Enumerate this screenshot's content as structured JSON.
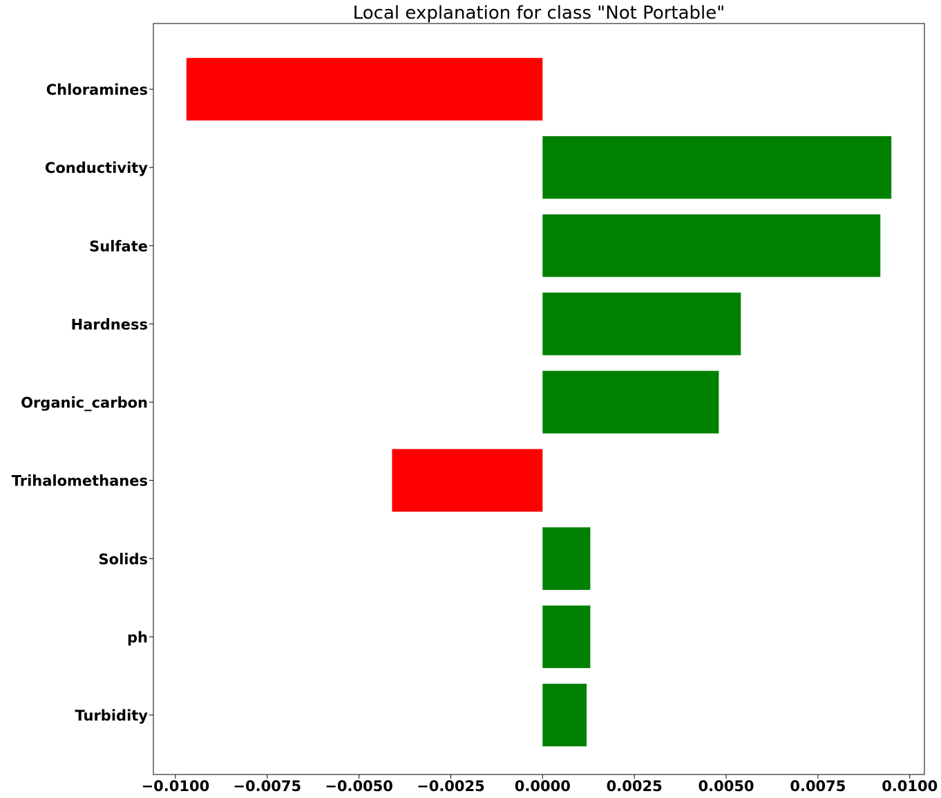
{
  "chart_data": {
    "type": "bar",
    "orientation": "horizontal",
    "title": "Local explanation for class \"Not Portable\"",
    "xlabel": "",
    "ylabel": "",
    "xlim": [
      -0.0106,
      0.0104
    ],
    "grid": false,
    "categories": [
      "Chloramines",
      "Conductivity",
      "Sulfate",
      "Hardness",
      "Organic_carbon",
      "Trihalomethanes",
      "Solids",
      "ph",
      "Turbidity"
    ],
    "values": [
      -0.0097,
      0.0095,
      0.0092,
      0.0054,
      0.0048,
      -0.0041,
      0.0013,
      0.0013,
      0.0012
    ],
    "x_ticks": [
      -0.01,
      -0.0075,
      -0.005,
      -0.0025,
      0.0,
      0.0025,
      0.005,
      0.0075,
      0.01
    ],
    "x_tick_labels": [
      "−0.0100",
      "−0.0075",
      "−0.0050",
      "−0.0025",
      "0.0000",
      "0.0025",
      "0.0050",
      "0.0075",
      "0.0100"
    ],
    "colors": {
      "positive": "#008000",
      "negative": "#ff0000",
      "axis": "#000000"
    }
  }
}
